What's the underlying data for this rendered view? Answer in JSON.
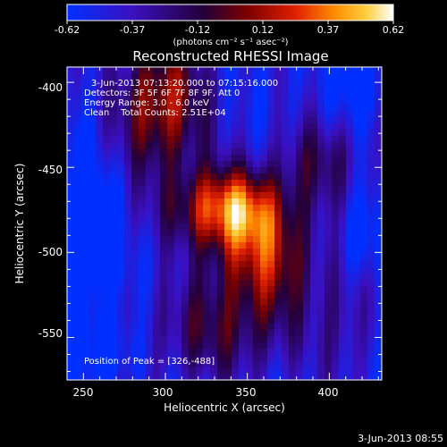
{
  "colorbar": {
    "tick_labels": [
      "-0.62",
      "-0.37",
      "-0.12",
      "0.12",
      "0.37",
      "0.62"
    ],
    "units_label": "(photons cm⁻² s⁻¹ asec⁻²)"
  },
  "plot": {
    "title": "Reconstructed RHESSI Image",
    "xlabel": "Heliocentric X (arcsec)",
    "ylabel": "Heliocentric Y (arcsec)",
    "x_ticks": [
      "250",
      "300",
      "350",
      "400"
    ],
    "y_ticks": [
      "-400",
      "-450",
      "-500",
      "-550"
    ],
    "xlim": [
      240,
      432
    ],
    "ylim": [
      -575,
      -391
    ]
  },
  "annotations": {
    "time_range": "3-Jun-2013 07:13:20.000 to 07:15:16.000",
    "detectors": "Detectors: 3F 5F 6F 7F 8F 9F, Att 0",
    "energy": "Energy Range: 3.0 - 6.0 keV",
    "algorithm": "Clean    Total Counts: 2.51E+04",
    "peak": "Position of Peak = [326,-488]"
  },
  "footer": {
    "timestamp": "3-Jun-2013 08:55"
  },
  "colors": {
    "colormap": [
      "#0030ff",
      "#3a10c0",
      "#24003a",
      "#7a0000",
      "#e02000",
      "#ff8c00",
      "#ffd040",
      "#ffffff"
    ]
  }
}
